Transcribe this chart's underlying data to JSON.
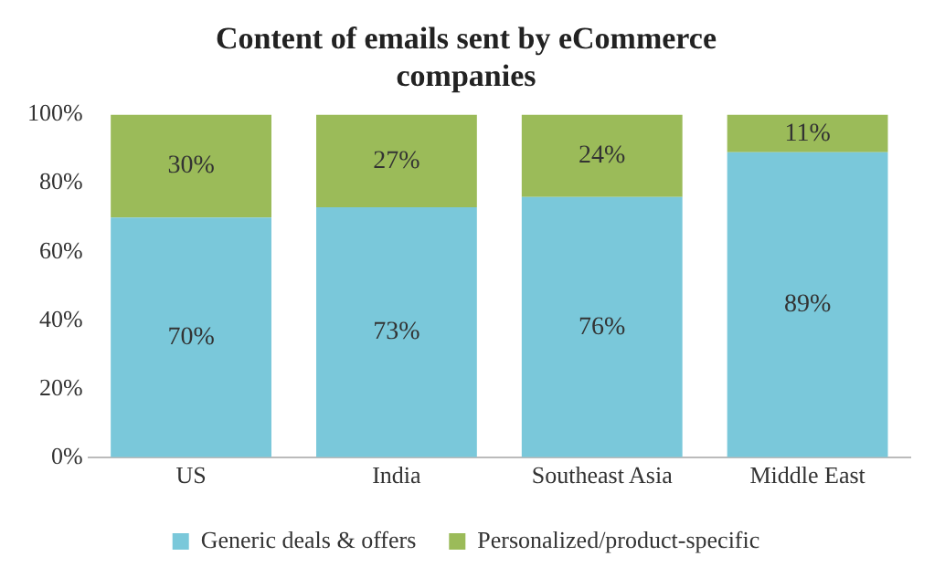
{
  "chart_data": {
    "type": "bar",
    "title": "Content of emails sent by eCommerce companies",
    "categories": [
      "US",
      "India",
      "Southeast Asia",
      "Middle East"
    ],
    "stacked": true,
    "series": [
      {
        "name": "Generic deals & offers",
        "color": "#7ac8da",
        "values": [
          70,
          73,
          76,
          89
        ],
        "value_labels": [
          "70%",
          "73%",
          "76%",
          "89%"
        ]
      },
      {
        "name": "Personalized/product-specific",
        "color": "#9bbb59",
        "values": [
          30,
          27,
          24,
          11
        ],
        "value_labels": [
          "30%",
          "27%",
          "24%",
          "11%"
        ]
      }
    ],
    "ylim": [
      0,
      100
    ],
    "yticks": [
      {
        "value": 0,
        "label": "0%"
      },
      {
        "value": 20,
        "label": "20%"
      },
      {
        "value": 40,
        "label": "40%"
      },
      {
        "value": 60,
        "label": "60%"
      },
      {
        "value": 80,
        "label": "80%"
      },
      {
        "value": 100,
        "label": "100%"
      }
    ],
    "grid": false,
    "legend": "bottom"
  }
}
